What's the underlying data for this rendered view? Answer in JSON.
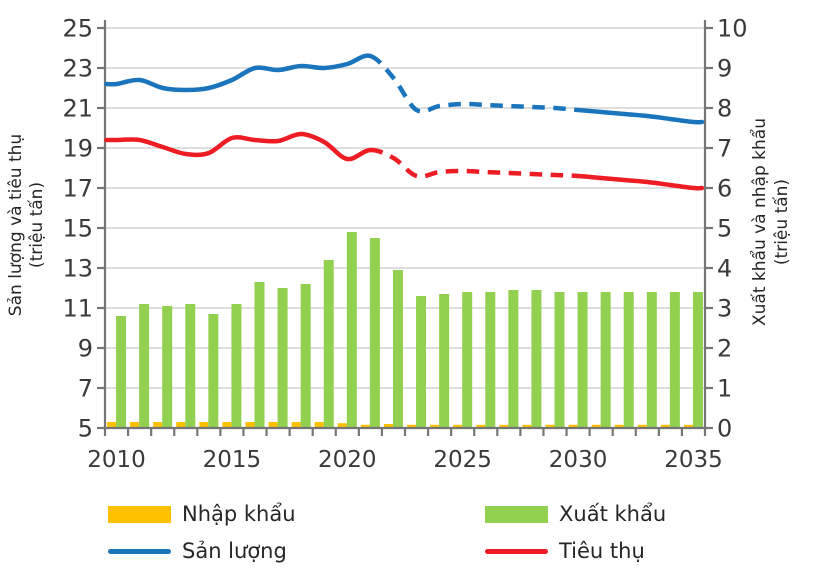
{
  "chart_data": {
    "type": "combo-bar-line",
    "title": "",
    "x": [
      2010,
      2011,
      2012,
      2013,
      2014,
      2015,
      2016,
      2017,
      2018,
      2019,
      2020,
      2021,
      2022,
      2023,
      2024,
      2025,
      2026,
      2027,
      2028,
      2029,
      2030,
      2031,
      2032,
      2033,
      2034,
      2035
    ],
    "series": [
      {
        "name": "Nhập khẩu",
        "type": "bar",
        "axis": "right",
        "color": "#FFC000",
        "values": [
          0.15,
          0.15,
          0.15,
          0.15,
          0.15,
          0.15,
          0.15,
          0.15,
          0.15,
          0.15,
          0.12,
          0.08,
          0.1,
          0.08,
          0.08,
          0.08,
          0.08,
          0.08,
          0.08,
          0.08,
          0.08,
          0.08,
          0.08,
          0.08,
          0.08,
          0.08
        ]
      },
      {
        "name": "Xuất khẩu",
        "type": "bar",
        "axis": "right",
        "color": "#92D050",
        "values": [
          2.8,
          3.1,
          3.05,
          3.1,
          2.85,
          3.1,
          3.65,
          3.5,
          3.6,
          4.2,
          4.9,
          4.75,
          3.95,
          3.3,
          3.35,
          3.4,
          3.4,
          3.45,
          3.45,
          3.4,
          3.4,
          3.4,
          3.4,
          3.4,
          3.4,
          3.4
        ]
      },
      {
        "name": "Sản lượng",
        "type": "line",
        "axis": "left",
        "color": "#1B75BC",
        "dashed_from": 2021,
        "solid_again_from": 2030,
        "values": [
          22.2,
          22.4,
          22.0,
          21.9,
          22.0,
          22.4,
          23.0,
          22.9,
          23.1,
          23.0,
          23.2,
          23.6,
          22.5,
          20.9,
          21.1,
          21.2,
          21.15,
          21.1,
          21.05,
          21.0,
          20.9,
          20.8,
          20.7,
          20.6,
          20.45,
          20.3
        ]
      },
      {
        "name": "Tiêu thụ",
        "type": "line",
        "axis": "left",
        "color": "#EE1C25",
        "dashed_from": 2021,
        "solid_again_from": 2030,
        "values": [
          19.4,
          19.4,
          19.05,
          18.7,
          18.75,
          19.5,
          19.4,
          19.35,
          19.7,
          19.3,
          18.45,
          18.9,
          18.5,
          17.6,
          17.8,
          17.85,
          17.8,
          17.75,
          17.7,
          17.65,
          17.6,
          17.5,
          17.4,
          17.3,
          17.15,
          17.0
        ]
      }
    ],
    "left_axis": {
      "title": "Sản lượng và tiêu thụ",
      "unit": "(triệu tấn)",
      "min": 5,
      "max": 25,
      "ticks": [
        5,
        7,
        9,
        11,
        13,
        15,
        17,
        19,
        21,
        23,
        25
      ]
    },
    "right_axis": {
      "title": "Xuất khẩu và nhập khẩu",
      "unit": "(triệu tấn)",
      "min": 0,
      "max": 10,
      "ticks": [
        0,
        1,
        2,
        3,
        4,
        5,
        6,
        7,
        8,
        9,
        10
      ]
    },
    "x_axis": {
      "tick_labels": [
        2010,
        2015,
        2020,
        2025,
        2030,
        2035
      ]
    },
    "grid": "horizontal",
    "legend_position": "bottom",
    "colors": {
      "grid": "#C9C9C9",
      "spine": "#757575",
      "tick_text": "#3A3A3A",
      "axis_title_text": "#262626"
    }
  }
}
